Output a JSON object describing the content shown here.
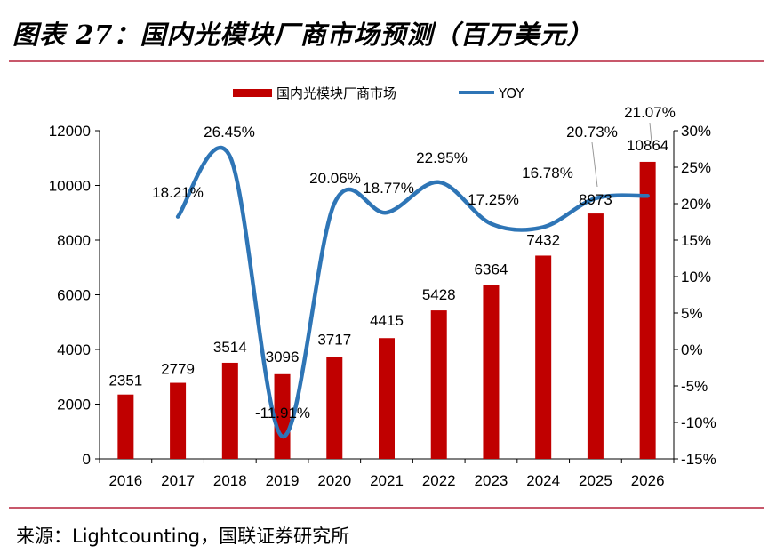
{
  "header": {
    "title": "图表 27：国内光模块厂商市场预测（百万美元）"
  },
  "footer": {
    "source": "来源：Lightcounting，国联证券研究所"
  },
  "colors": {
    "bar": "#c00000",
    "line": "#2e75b6",
    "rule": "#c8586b"
  },
  "chart_data": {
    "type": "bar",
    "categories": [
      "2016",
      "2017",
      "2018",
      "2019",
      "2020",
      "2021",
      "2022",
      "2023",
      "2024",
      "2025",
      "2026"
    ],
    "series": [
      {
        "name": "国内光模块厂商市场",
        "type": "bar",
        "axis": "left",
        "values": [
          2351,
          2779,
          3514,
          3096,
          3717,
          4415,
          5428,
          6364,
          7432,
          8973,
          10864
        ],
        "labels": [
          "2351",
          "2779",
          "3514",
          "3096",
          "3717",
          "4415",
          "5428",
          "6364",
          "7432",
          "8973",
          "10864"
        ]
      },
      {
        "name": "YOY",
        "type": "line",
        "axis": "right",
        "values": [
          null,
          18.21,
          26.45,
          -11.91,
          20.06,
          18.77,
          22.95,
          17.25,
          16.78,
          20.73,
          21.07
        ],
        "labels": [
          "",
          "18.21%",
          "26.45%",
          "-11.91%",
          "20.06%",
          "18.77%",
          "22.95%",
          "17.25%",
          "16.78%",
          "20.73%",
          "21.07%"
        ]
      }
    ],
    "y_left": {
      "ylim": [
        0,
        12000
      ],
      "ticks": [
        "0",
        "2000",
        "4000",
        "6000",
        "8000",
        "10000",
        "12000"
      ]
    },
    "y_right": {
      "ylim": [
        -15,
        30
      ],
      "ticks": [
        "-15%",
        "-10%",
        "-5%",
        "0%",
        "5%",
        "10%",
        "15%",
        "20%",
        "25%",
        "30%"
      ]
    },
    "legend": {
      "placement": "top-center"
    },
    "grid": false
  }
}
